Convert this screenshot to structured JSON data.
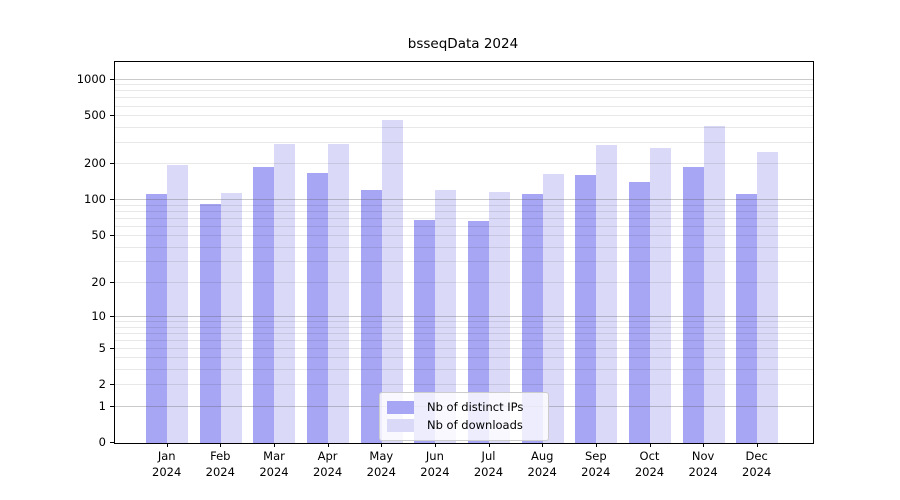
{
  "chart_data": {
    "type": "bar",
    "title": "bsseqData 2024",
    "categories": [
      "Jan",
      "Feb",
      "Mar",
      "Apr",
      "May",
      "Jun",
      "Jul",
      "Aug",
      "Sep",
      "Oct",
      "Nov",
      "Dec"
    ],
    "category_year": "2024",
    "series": [
      {
        "name": "Nb of distinct IPs",
        "color": "#a6a6f5",
        "values": [
          113,
          94,
          188,
          168,
          123,
          68,
          67,
          112,
          163,
          142,
          188,
          114
        ]
      },
      {
        "name": "Nb of downloads",
        "color": "#dadaf8",
        "values": [
          196,
          115,
          295,
          295,
          463,
          123,
          117,
          166,
          291,
          272,
          415,
          252
        ]
      }
    ],
    "xlabel": "",
    "ylabel": "",
    "y_scale": "log1p",
    "ylim": [
      0,
      1400
    ],
    "y_ticks": [
      0,
      1,
      2,
      5,
      10,
      20,
      50,
      100,
      200,
      500,
      1000
    ],
    "y_major_gridlines": [
      1,
      10,
      100,
      1000
    ],
    "y_minor_gridline_bases": [
      1,
      10,
      100
    ],
    "grid": "on",
    "legend_position": "inside-bottom-center"
  }
}
